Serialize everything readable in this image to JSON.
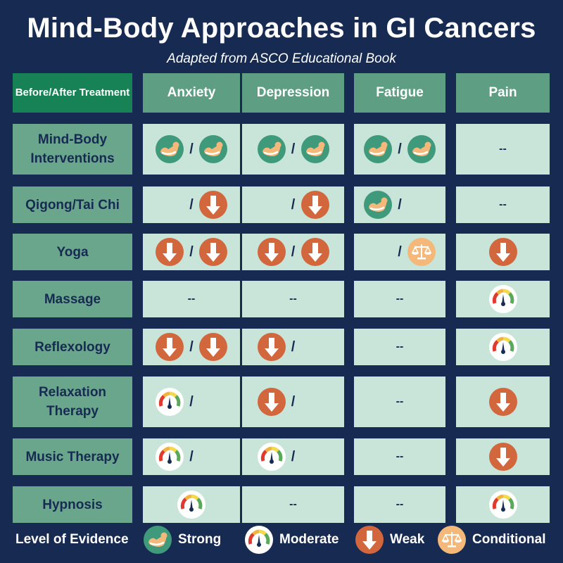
{
  "title": "Mind-Body Approaches in GI Cancers",
  "subtitle": "Adapted from ASCO Educational Book",
  "corner_label": "Before/After Treatment",
  "columns": [
    "Anxiety",
    "Depression",
    "Fatigue",
    "Pain"
  ],
  "separator": "/",
  "no_data": "--",
  "rows": [
    {
      "label": "Mind-Body Interventions",
      "cells": [
        [
          "strong",
          "strong"
        ],
        [
          "strong",
          "strong"
        ],
        [
          "strong",
          "strong"
        ],
        [
          "none"
        ]
      ]
    },
    {
      "label": "Qigong/Tai Chi",
      "cells": [
        [
          "empty",
          "weak"
        ],
        [
          "empty",
          "weak"
        ],
        [
          "strong",
          "empty"
        ],
        [
          "none"
        ]
      ]
    },
    {
      "label": "Yoga",
      "cells": [
        [
          "weak",
          "weak"
        ],
        [
          "weak",
          "weak"
        ],
        [
          "empty",
          "conditional"
        ],
        [
          "weak"
        ]
      ]
    },
    {
      "label": "Massage",
      "cells": [
        [
          "none"
        ],
        [
          "none"
        ],
        [
          "none"
        ],
        [
          "moderate"
        ]
      ]
    },
    {
      "label": "Reflexology",
      "cells": [
        [
          "weak",
          "weak"
        ],
        [
          "weak",
          "empty"
        ],
        [
          "none"
        ],
        [
          "moderate"
        ]
      ]
    },
    {
      "label": "Relaxation Therapy",
      "cells": [
        [
          "moderate",
          "empty"
        ],
        [
          "weak",
          "empty"
        ],
        [
          "none"
        ],
        [
          "weak"
        ]
      ]
    },
    {
      "label": "Music Therapy",
      "cells": [
        [
          "moderate",
          "empty"
        ],
        [
          "moderate",
          "empty"
        ],
        [
          "none"
        ],
        [
          "weak"
        ]
      ]
    },
    {
      "label": "Hypnosis",
      "cells": [
        [
          "moderate"
        ],
        [
          "none"
        ],
        [
          "none"
        ],
        [
          "moderate"
        ]
      ]
    }
  ],
  "legend": {
    "title": "Level of Evidence",
    "items": [
      {
        "key": "strong",
        "label": "Strong",
        "icon": "flexed-arm-icon",
        "color": "#3e9a7a"
      },
      {
        "key": "moderate",
        "label": "Moderate",
        "icon": "gauge-icon",
        "color": "#ffffff"
      },
      {
        "key": "weak",
        "label": "Weak",
        "icon": "down-arrow-icon",
        "color": "#d2663c"
      },
      {
        "key": "conditional",
        "label": "Conditional",
        "icon": "balance-scale-icon",
        "color": "#f4b97a"
      }
    ]
  },
  "colors": {
    "background": "#172b52",
    "header_corner": "#168255",
    "header": "#5e9e83",
    "row_header": "#6aa68c",
    "cell": "#c9e4d8"
  }
}
